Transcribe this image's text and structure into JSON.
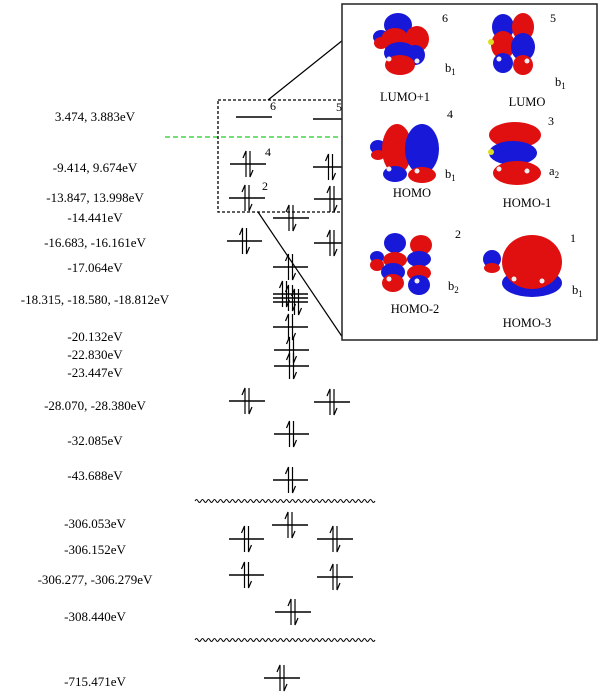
{
  "energy_labels": [
    "3.474, 3.883eV",
    "-9.414, 9.674eV",
    "-13.847, 13.998eV",
    "-14.441eV",
    "-16.683, -16.161eV",
    "-17.064eV",
    "-18.315, -18.580, -18.812eV",
    "-20.132eV",
    "-22.830eV",
    "-23.447eV",
    "-28.070, -28.380eV",
    "-32.085eV",
    "-43.688eV",
    "-306.053eV",
    "-306.152eV",
    "-306.277, -306.279eV",
    "-308.440eV",
    "-715.471eV"
  ],
  "level_numbers": [
    "6",
    "5",
    "4",
    "3",
    "2",
    "1"
  ],
  "orbitals": [
    {
      "number": "6",
      "name": "LUMO+1",
      "symmetry": "b",
      "sub": "1"
    },
    {
      "number": "5",
      "name": "LUMO",
      "symmetry": "b",
      "sub": "1"
    },
    {
      "number": "4",
      "name": "HOMO",
      "symmetry": "b",
      "sub": "1"
    },
    {
      "number": "3",
      "name": "HOMO-1",
      "symmetry": "a",
      "sub": "2"
    },
    {
      "number": "2",
      "name": "HOMO-2",
      "symmetry": "b",
      "sub": "2"
    },
    {
      "number": "1",
      "name": "HOMO-3",
      "symmetry": "b",
      "sub": "1"
    }
  ],
  "colors": {
    "lobe_positive": "#e01010",
    "lobe_negative": "#1818d8",
    "fermi_line": "#22cc22",
    "lines": "#000000"
  }
}
